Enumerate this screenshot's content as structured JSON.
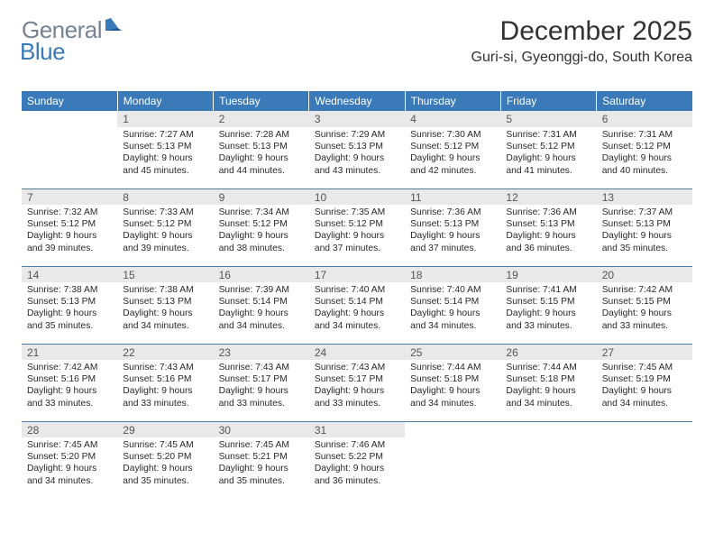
{
  "brand": {
    "text1": "General",
    "text2": "Blue"
  },
  "title": "December 2025",
  "location": "Guri-si, Gyeonggi-do, South Korea",
  "colors": {
    "header_bg": "#3a7ab8",
    "header_text": "#ffffff",
    "daynum_bg": "#e9e9e9",
    "rule": "#4a7fb0",
    "text": "#282828",
    "brand_gray": "#768491",
    "brand_blue": "#3a7ab8"
  },
  "weekdays": [
    "Sunday",
    "Monday",
    "Tuesday",
    "Wednesday",
    "Thursday",
    "Friday",
    "Saturday"
  ],
  "weeks": [
    [
      null,
      {
        "n": "1",
        "sr": "7:27 AM",
        "ss": "5:13 PM",
        "dl": "9 hours and 45 minutes."
      },
      {
        "n": "2",
        "sr": "7:28 AM",
        "ss": "5:13 PM",
        "dl": "9 hours and 44 minutes."
      },
      {
        "n": "3",
        "sr": "7:29 AM",
        "ss": "5:13 PM",
        "dl": "9 hours and 43 minutes."
      },
      {
        "n": "4",
        "sr": "7:30 AM",
        "ss": "5:12 PM",
        "dl": "9 hours and 42 minutes."
      },
      {
        "n": "5",
        "sr": "7:31 AM",
        "ss": "5:12 PM",
        "dl": "9 hours and 41 minutes."
      },
      {
        "n": "6",
        "sr": "7:31 AM",
        "ss": "5:12 PM",
        "dl": "9 hours and 40 minutes."
      }
    ],
    [
      {
        "n": "7",
        "sr": "7:32 AM",
        "ss": "5:12 PM",
        "dl": "9 hours and 39 minutes."
      },
      {
        "n": "8",
        "sr": "7:33 AM",
        "ss": "5:12 PM",
        "dl": "9 hours and 39 minutes."
      },
      {
        "n": "9",
        "sr": "7:34 AM",
        "ss": "5:12 PM",
        "dl": "9 hours and 38 minutes."
      },
      {
        "n": "10",
        "sr": "7:35 AM",
        "ss": "5:12 PM",
        "dl": "9 hours and 37 minutes."
      },
      {
        "n": "11",
        "sr": "7:36 AM",
        "ss": "5:13 PM",
        "dl": "9 hours and 37 minutes."
      },
      {
        "n": "12",
        "sr": "7:36 AM",
        "ss": "5:13 PM",
        "dl": "9 hours and 36 minutes."
      },
      {
        "n": "13",
        "sr": "7:37 AM",
        "ss": "5:13 PM",
        "dl": "9 hours and 35 minutes."
      }
    ],
    [
      {
        "n": "14",
        "sr": "7:38 AM",
        "ss": "5:13 PM",
        "dl": "9 hours and 35 minutes."
      },
      {
        "n": "15",
        "sr": "7:38 AM",
        "ss": "5:13 PM",
        "dl": "9 hours and 34 minutes."
      },
      {
        "n": "16",
        "sr": "7:39 AM",
        "ss": "5:14 PM",
        "dl": "9 hours and 34 minutes."
      },
      {
        "n": "17",
        "sr": "7:40 AM",
        "ss": "5:14 PM",
        "dl": "9 hours and 34 minutes."
      },
      {
        "n": "18",
        "sr": "7:40 AM",
        "ss": "5:14 PM",
        "dl": "9 hours and 34 minutes."
      },
      {
        "n": "19",
        "sr": "7:41 AM",
        "ss": "5:15 PM",
        "dl": "9 hours and 33 minutes."
      },
      {
        "n": "20",
        "sr": "7:42 AM",
        "ss": "5:15 PM",
        "dl": "9 hours and 33 minutes."
      }
    ],
    [
      {
        "n": "21",
        "sr": "7:42 AM",
        "ss": "5:16 PM",
        "dl": "9 hours and 33 minutes."
      },
      {
        "n": "22",
        "sr": "7:43 AM",
        "ss": "5:16 PM",
        "dl": "9 hours and 33 minutes."
      },
      {
        "n": "23",
        "sr": "7:43 AM",
        "ss": "5:17 PM",
        "dl": "9 hours and 33 minutes."
      },
      {
        "n": "24",
        "sr": "7:43 AM",
        "ss": "5:17 PM",
        "dl": "9 hours and 33 minutes."
      },
      {
        "n": "25",
        "sr": "7:44 AM",
        "ss": "5:18 PM",
        "dl": "9 hours and 34 minutes."
      },
      {
        "n": "26",
        "sr": "7:44 AM",
        "ss": "5:18 PM",
        "dl": "9 hours and 34 minutes."
      },
      {
        "n": "27",
        "sr": "7:45 AM",
        "ss": "5:19 PM",
        "dl": "9 hours and 34 minutes."
      }
    ],
    [
      {
        "n": "28",
        "sr": "7:45 AM",
        "ss": "5:20 PM",
        "dl": "9 hours and 34 minutes."
      },
      {
        "n": "29",
        "sr": "7:45 AM",
        "ss": "5:20 PM",
        "dl": "9 hours and 35 minutes."
      },
      {
        "n": "30",
        "sr": "7:45 AM",
        "ss": "5:21 PM",
        "dl": "9 hours and 35 minutes."
      },
      {
        "n": "31",
        "sr": "7:46 AM",
        "ss": "5:22 PM",
        "dl": "9 hours and 36 minutes."
      },
      null,
      null,
      null
    ]
  ],
  "labels": {
    "sunrise": "Sunrise:",
    "sunset": "Sunset:",
    "daylight": "Daylight:"
  }
}
